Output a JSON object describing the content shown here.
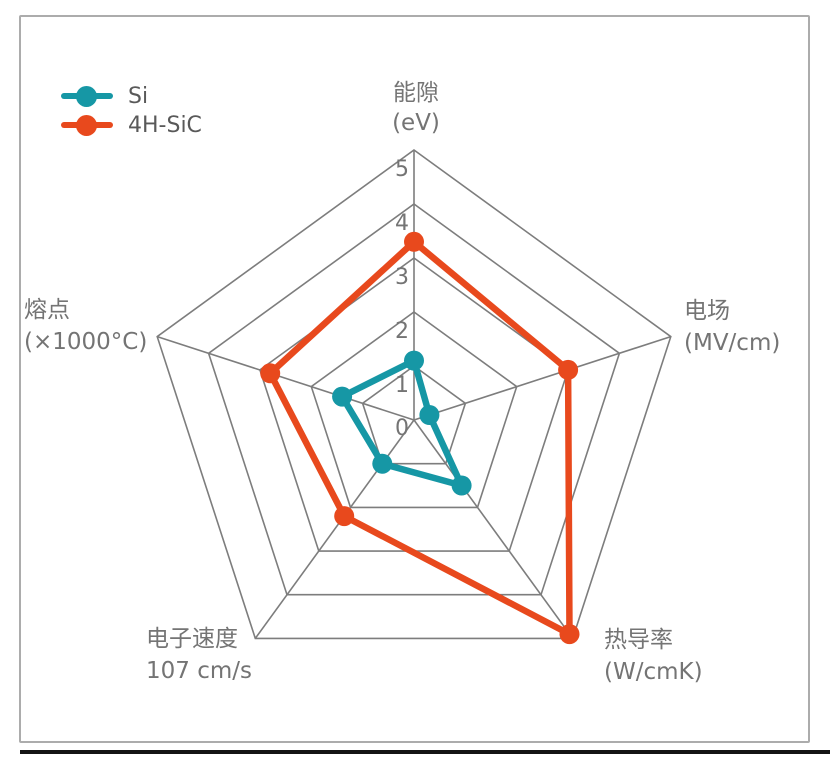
{
  "legend": {
    "items": [
      {
        "label": "Si",
        "color": "#1697a5"
      },
      {
        "label": "4H-SiC",
        "color": "#e8491d"
      }
    ]
  },
  "chart_data": {
    "type": "radar",
    "axes": [
      {
        "label": "能隙",
        "unit": "(eV)"
      },
      {
        "label": "电场",
        "unit": "(MV/cm)"
      },
      {
        "label": "热导率",
        "unit": "(W/cmK)"
      },
      {
        "label": "电子速度",
        "unit": "107 cm/s"
      },
      {
        "label": "熔点",
        "unit": "(×1000°C)"
      }
    ],
    "tick_labels": [
      "0",
      "1",
      "2",
      "3",
      "4",
      "5"
    ],
    "rmax": 5,
    "levels": 5,
    "series": [
      {
        "name": "Si",
        "color": "#1697a5",
        "values": [
          1.1,
          0.3,
          1.5,
          1.0,
          1.4
        ]
      },
      {
        "name": "4H-SiC",
        "color": "#e8491d",
        "values": [
          3.3,
          3.0,
          4.9,
          2.2,
          2.8
        ]
      }
    ],
    "grid_color": "#7d7d7d",
    "label_color": "#747474",
    "legend_position": "top-left",
    "grid": "pentagon-rings-with-spokes"
  }
}
